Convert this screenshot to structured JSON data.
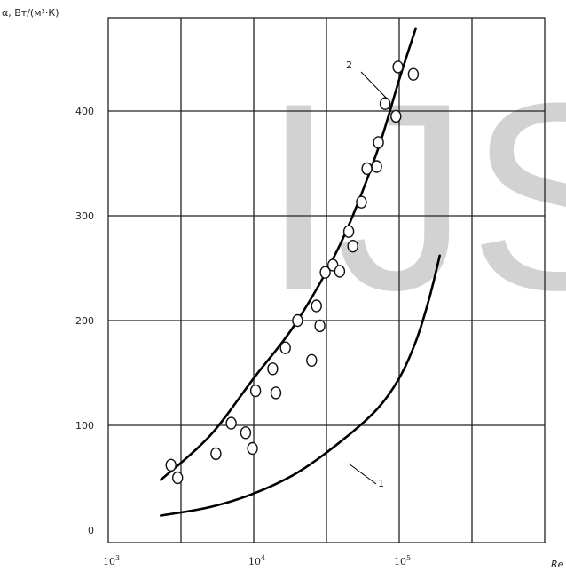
{
  "watermark": "IJS",
  "chart_data": {
    "type": "scatter",
    "ylabel": "α, Вт/(м²·К)",
    "xlabel": "Re",
    "x_scale": "log",
    "xlim": [
      1000,
      300000
    ],
    "ylim": [
      0,
      500
    ],
    "grid": true,
    "yticks": [
      {
        "v": 0,
        "label": "0"
      },
      {
        "v": 100,
        "label": "100"
      },
      {
        "v": 200,
        "label": "200"
      },
      {
        "v": 300,
        "label": "300"
      },
      {
        "v": 400,
        "label": "400"
      }
    ],
    "xticks": [
      {
        "v": 1000,
        "base": "10",
        "exp": "3"
      },
      {
        "v": 10000,
        "base": "10",
        "exp": "4"
      },
      {
        "v": 100000,
        "base": "10",
        "exp": "5"
      }
    ],
    "series": [
      {
        "name": "1",
        "style": "line",
        "x": [
          2300,
          5000,
          10000,
          20000,
          40000,
          70000,
          100000,
          130000,
          160000,
          190000
        ],
        "y": [
          14,
          22,
          35,
          55,
          85,
          115,
          145,
          180,
          220,
          262
        ]
      },
      {
        "name": "2",
        "style": "line",
        "x": [
          2300,
          5000,
          10000,
          20000,
          40000,
          70000,
          100000,
          130000
        ],
        "y": [
          48,
          90,
          145,
          200,
          275,
          360,
          430,
          479
        ]
      },
      {
        "name": "",
        "style": "points",
        "x": [
          2700,
          3000,
          5500,
          7000,
          8800,
          9800,
          10300,
          13500,
          14200,
          16500,
          20000,
          25000,
          27000,
          28500,
          31000,
          35000,
          39000,
          45000,
          48000,
          55000,
          60000,
          70000,
          72000,
          80000,
          95000,
          98000,
          125000
        ],
        "y": [
          62,
          50,
          73,
          102,
          93,
          78,
          133,
          154,
          131,
          174,
          200,
          162,
          214,
          195,
          246,
          253,
          247,
          285,
          271,
          313,
          345,
          347,
          370,
          407,
          395,
          442,
          435
        ]
      }
    ]
  }
}
